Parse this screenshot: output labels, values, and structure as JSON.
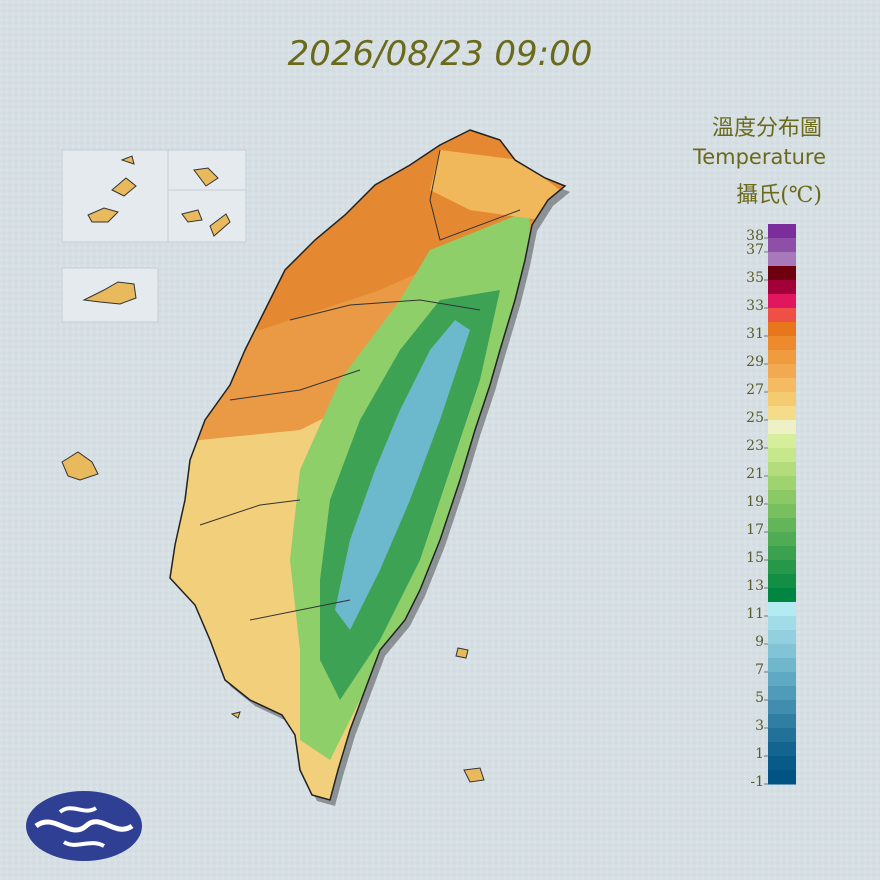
{
  "map": {
    "title": "2026/08/23 09:00",
    "legend": {
      "title": "溫度分布圖",
      "subtitle": "Temperature",
      "unit": "攝氏(℃)",
      "lim": [
        -1,
        39
      ],
      "ticks": [
        38,
        37,
        35,
        33,
        31,
        29,
        27,
        25,
        23,
        21,
        19,
        17,
        15,
        13,
        11,
        9,
        7,
        5,
        3,
        1,
        -1
      ],
      "colors": [
        "#7b2d9b",
        "#8e4fa8",
        "#a779bb",
        "#6e0010",
        "#a3003a",
        "#e0175e",
        "#ef5046",
        "#e8761c",
        "#ee8a2e",
        "#f19b40",
        "#f2aa52",
        "#f4bb62",
        "#f5cb72",
        "#f5dc8a",
        "#eef0c6",
        "#d6ee9c",
        "#c6e78c",
        "#b3dd7c",
        "#9fd36f",
        "#8bc966",
        "#77bf5f",
        "#63b559",
        "#4fab54",
        "#3ba14f",
        "#27974a",
        "#138e45",
        "#008640",
        "#b4eaf2",
        "#a2dce8",
        "#92d0e0",
        "#82c4d6",
        "#70b7cc",
        "#60a9c2",
        "#509bb8",
        "#408dae",
        "#307fa3",
        "#217199",
        "#13648f",
        "#085a88",
        "#005383"
      ]
    }
  }
}
